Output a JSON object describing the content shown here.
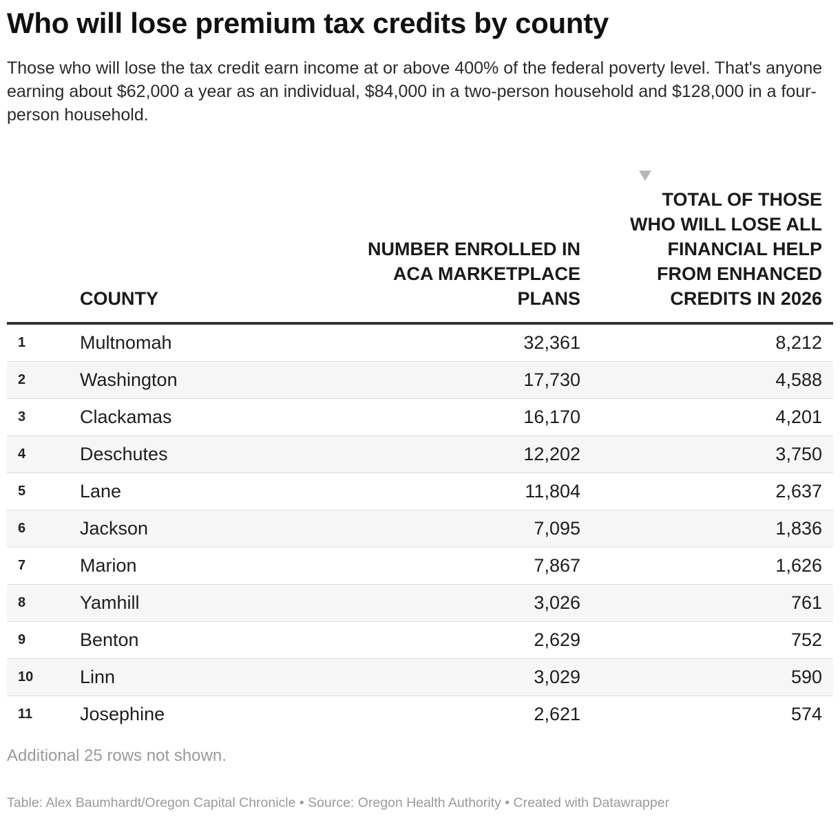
{
  "title": "Who will lose premium tax credits by county",
  "subtitle": "Those who will lose the tax credit earn income at or above 400% of the federal poverty level. That's anyone earning about $62,000 a year as an individual, $84,000 in a two-person household and $128,000 in a four-person household.",
  "notes": "Additional 25 rows not shown.",
  "footer": "Table: Alex Baumhardt/Oregon Capital Chronicle • Source: Oregon Health Authority • Created with Datawrapper",
  "icons": {
    "sort": "sort-descending-icon"
  },
  "colors": {
    "header_rule": "#333333",
    "alt_row": "#f6f6f6",
    "muted_text": "#9a9a9a"
  },
  "chart_data": {
    "type": "table",
    "title": "Who will lose premium tax credits by county",
    "columns": [
      "COUNTY",
      "NUMBER ENROLLED IN ACA MARKETPLACE PLANS",
      "TOTAL OF THOSE WHO WILL LOSE ALL FINANCIAL HELP FROM ENHANCED CREDITS IN 2026"
    ],
    "sorted_by": "TOTAL OF THOSE WHO WILL LOSE ALL FINANCIAL HELP FROM ENHANCED CREDITS IN 2026",
    "sort_order": "descending",
    "rows": [
      {
        "rank": "1",
        "county": "Multnomah",
        "enrolled": "32,361",
        "lose": "8,212"
      },
      {
        "rank": "2",
        "county": "Washington",
        "enrolled": "17,730",
        "lose": "4,588"
      },
      {
        "rank": "3",
        "county": "Clackamas",
        "enrolled": "16,170",
        "lose": "4,201"
      },
      {
        "rank": "4",
        "county": "Deschutes",
        "enrolled": "12,202",
        "lose": "3,750"
      },
      {
        "rank": "5",
        "county": "Lane",
        "enrolled": "11,804",
        "lose": "2,637"
      },
      {
        "rank": "6",
        "county": "Jackson",
        "enrolled": "7,095",
        "lose": "1,836"
      },
      {
        "rank": "7",
        "county": "Marion",
        "enrolled": "7,867",
        "lose": "1,626"
      },
      {
        "rank": "8",
        "county": "Yamhill",
        "enrolled": "3,026",
        "lose": "761"
      },
      {
        "rank": "9",
        "county": "Benton",
        "enrolled": "2,629",
        "lose": "752"
      },
      {
        "rank": "10",
        "county": "Linn",
        "enrolled": "3,029",
        "lose": "590"
      },
      {
        "rank": "11",
        "county": "Josephine",
        "enrolled": "2,621",
        "lose": "574"
      }
    ]
  }
}
